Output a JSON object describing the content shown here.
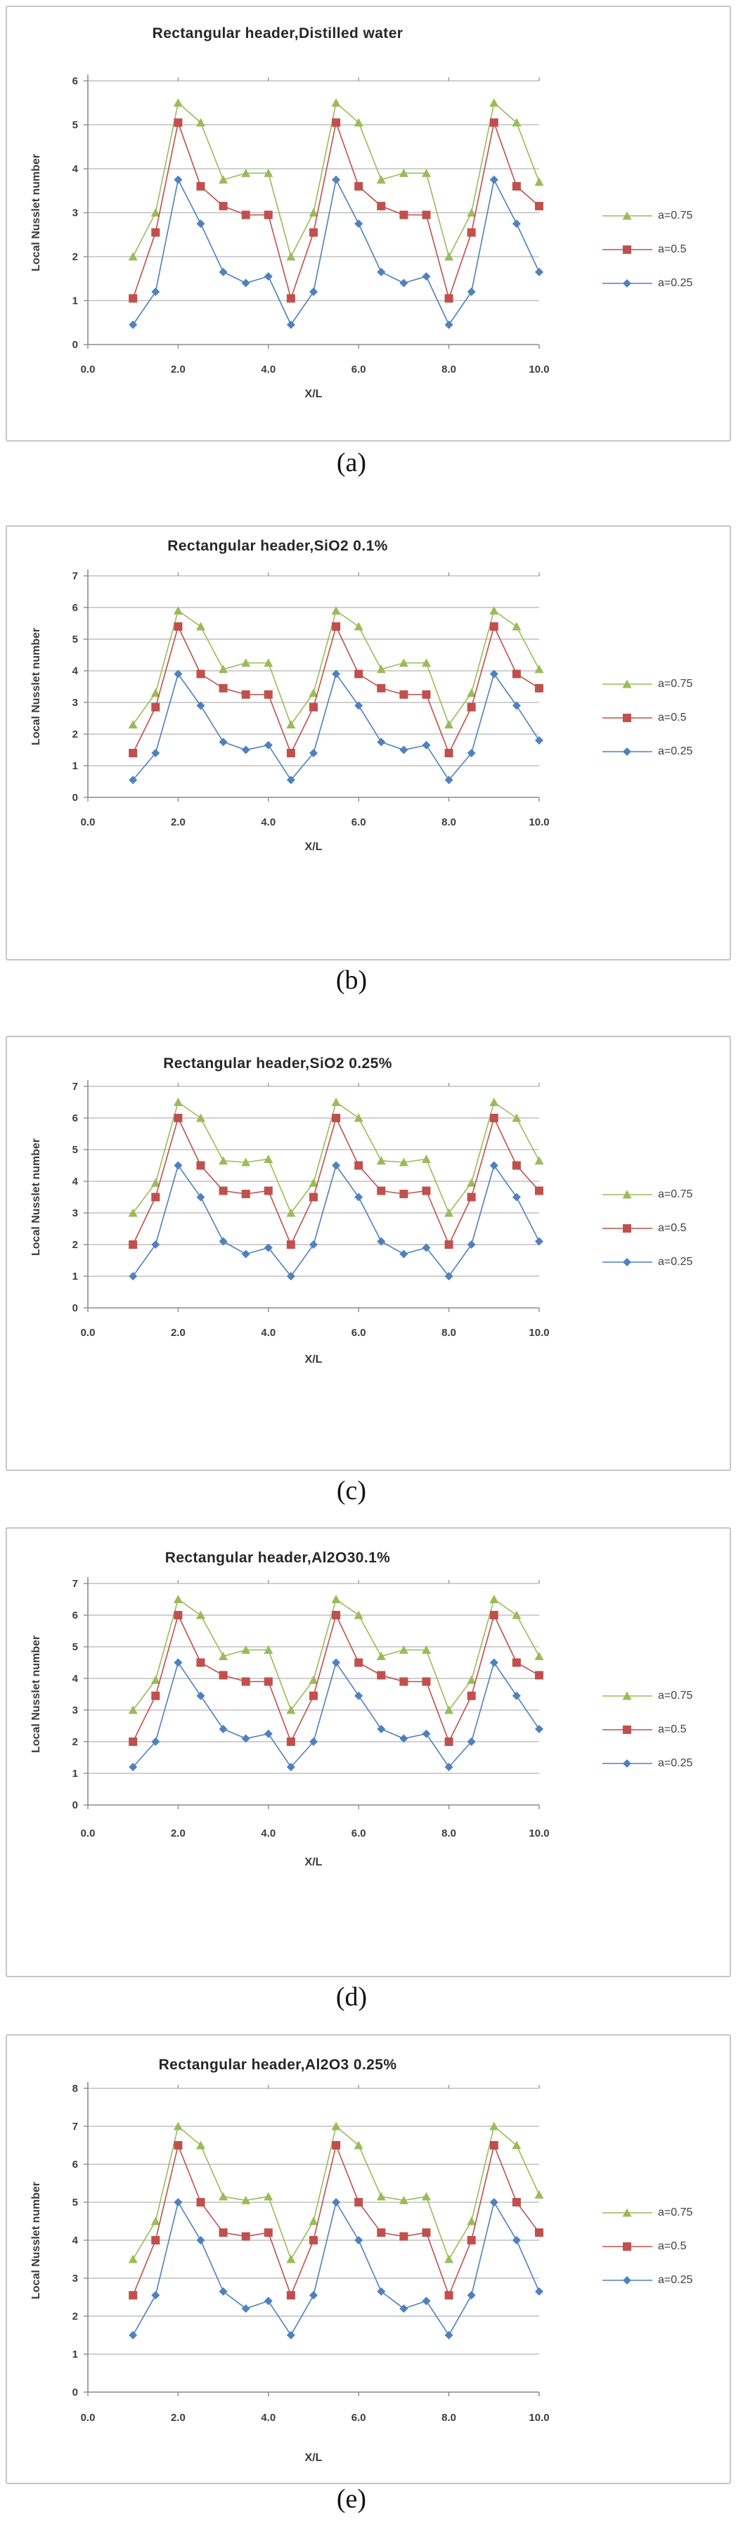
{
  "figure": {
    "description_labels": [
      "(a)",
      "(b)",
      "(c)",
      "(d)",
      "(e)"
    ]
  },
  "chart_data": [
    {
      "type": "line",
      "caption": "(a)",
      "title": "Rectangular header,Distilled water",
      "xlabel": "X/L",
      "ylabel": "Local Nusslet number",
      "xlim": [
        0,
        10
      ],
      "ylim": [
        0,
        6
      ],
      "grid": true,
      "legend_position": "right",
      "xticks": [
        "0.0",
        "2.0",
        "4.0",
        "6.0",
        "8.0",
        "10.0"
      ],
      "x": [
        1,
        1.5,
        2,
        2.5,
        3,
        3.5,
        4,
        4.5,
        5,
        5.5,
        6,
        6.5,
        7,
        7.5,
        8,
        8.5,
        9,
        9.5,
        10
      ],
      "series": [
        {
          "name": "a=0.75",
          "color": "#9bbb59",
          "marker": "triangle",
          "values": [
            2,
            3,
            5.5,
            5.05,
            3.75,
            3.9,
            3.9,
            2,
            3,
            5.5,
            5.05,
            3.75,
            3.9,
            3.9,
            2,
            3,
            5.5,
            5.05,
            3.7
          ]
        },
        {
          "name": "a=0.5",
          "color": "#c0504d",
          "marker": "square",
          "values": [
            1.05,
            2.55,
            5.05,
            3.6,
            3.15,
            2.95,
            2.95,
            1.05,
            2.55,
            5.05,
            3.6,
            3.15,
            2.95,
            2.95,
            1.05,
            2.55,
            5.05,
            3.6,
            3.15
          ]
        },
        {
          "name": "a=0.25",
          "color": "#4f81bd",
          "marker": "diamond",
          "values": [
            0.45,
            1.2,
            3.75,
            2.75,
            1.65,
            1.4,
            1.55,
            0.45,
            1.2,
            3.75,
            2.75,
            1.65,
            1.4,
            1.55,
            0.45,
            1.2,
            3.75,
            2.75,
            1.65
          ]
        }
      ]
    },
    {
      "type": "line",
      "caption": "(b)",
      "title": "Rectangular header,SiO2 0.1%",
      "xlabel": "X/L",
      "ylabel": "Local Nusslet number",
      "xlim": [
        0,
        10
      ],
      "ylim": [
        0,
        7
      ],
      "grid": true,
      "legend_position": "right",
      "xticks": [
        "0.0",
        "2.0",
        "4.0",
        "6.0",
        "8.0",
        "10.0"
      ],
      "x": [
        1,
        1.5,
        2,
        2.5,
        3,
        3.5,
        4,
        4.5,
        5,
        5.5,
        6,
        6.5,
        7,
        7.5,
        8,
        8.5,
        9,
        9.5,
        10
      ],
      "series": [
        {
          "name": "a=0.75",
          "color": "#9bbb59",
          "marker": "triangle",
          "values": [
            2.3,
            3.3,
            5.9,
            5.4,
            4.05,
            4.25,
            4.25,
            2.3,
            3.3,
            5.9,
            5.4,
            4.05,
            4.25,
            4.25,
            2.3,
            3.3,
            5.9,
            5.4,
            4.05
          ]
        },
        {
          "name": "a=0.5",
          "color": "#c0504d",
          "marker": "square",
          "values": [
            1.4,
            2.85,
            5.4,
            3.9,
            3.45,
            3.25,
            3.25,
            1.4,
            2.85,
            5.4,
            3.9,
            3.45,
            3.25,
            3.25,
            1.4,
            2.85,
            5.4,
            3.9,
            3.45
          ]
        },
        {
          "name": "a=0.25",
          "color": "#4f81bd",
          "marker": "diamond",
          "values": [
            0.55,
            1.4,
            3.9,
            2.9,
            1.75,
            1.5,
            1.65,
            0.55,
            1.4,
            3.9,
            2.9,
            1.75,
            1.5,
            1.65,
            0.55,
            1.4,
            3.9,
            2.9,
            1.8
          ]
        }
      ]
    },
    {
      "type": "line",
      "caption": "(c)",
      "title": "Rectangular header,SiO2 0.25%",
      "xlabel": "X/L",
      "ylabel": "Local Nusslet number",
      "xlim": [
        0,
        10
      ],
      "ylim": [
        0,
        7
      ],
      "grid": true,
      "legend_position": "right",
      "xticks": [
        "0.0",
        "2.0",
        "4.0",
        "6.0",
        "8.0",
        "10.0"
      ],
      "x": [
        1,
        1.5,
        2,
        2.5,
        3,
        3.5,
        4,
        4.5,
        5,
        5.5,
        6,
        6.5,
        7,
        7.5,
        8,
        8.5,
        9,
        9.5,
        10
      ],
      "series": [
        {
          "name": "a=0.75",
          "color": "#9bbb59",
          "marker": "triangle",
          "values": [
            3,
            3.95,
            6.5,
            6,
            4.65,
            4.6,
            4.7,
            3,
            3.95,
            6.5,
            6,
            4.65,
            4.6,
            4.7,
            3,
            3.95,
            6.5,
            6,
            4.65
          ]
        },
        {
          "name": "a=0.5",
          "color": "#c0504d",
          "marker": "square",
          "values": [
            2,
            3.5,
            6,
            4.5,
            3.7,
            3.6,
            3.7,
            2,
            3.5,
            6,
            4.5,
            3.7,
            3.6,
            3.7,
            2,
            3.5,
            6,
            4.5,
            3.7
          ]
        },
        {
          "name": "a=0.25",
          "color": "#4f81bd",
          "marker": "diamond",
          "values": [
            1,
            2,
            4.5,
            3.5,
            2.1,
            1.7,
            1.9,
            1,
            2,
            4.5,
            3.5,
            2.1,
            1.7,
            1.9,
            1,
            2,
            4.5,
            3.5,
            2.1
          ]
        }
      ]
    },
    {
      "type": "line",
      "caption": "(d)",
      "title": "Rectangular header,Al2O30.1%",
      "xlabel": "X/L",
      "ylabel": "Local Nusslet number",
      "xlim": [
        0,
        10
      ],
      "ylim": [
        0,
        7
      ],
      "grid": true,
      "legend_position": "right",
      "xticks": [
        "0.0",
        "2.0",
        "4.0",
        "6.0",
        "8.0",
        "10.0"
      ],
      "x": [
        1,
        1.5,
        2,
        2.5,
        3,
        3.5,
        4,
        4.5,
        5,
        5.5,
        6,
        6.5,
        7,
        7.5,
        8,
        8.5,
        9,
        9.5,
        10
      ],
      "series": [
        {
          "name": "a=0.75",
          "color": "#9bbb59",
          "marker": "triangle",
          "values": [
            3,
            3.95,
            6.5,
            6,
            4.7,
            4.9,
            4.9,
            3,
            3.95,
            6.5,
            6,
            4.7,
            4.9,
            4.9,
            3,
            3.95,
            6.5,
            6,
            4.7
          ]
        },
        {
          "name": "a=0.5",
          "color": "#c0504d",
          "marker": "square",
          "values": [
            2,
            3.45,
            6,
            4.5,
            4.1,
            3.9,
            3.9,
            2,
            3.45,
            6,
            4.5,
            4.1,
            3.9,
            3.9,
            2,
            3.45,
            6,
            4.5,
            4.1
          ]
        },
        {
          "name": "a=0.25",
          "color": "#4f81bd",
          "marker": "diamond",
          "values": [
            1.2,
            2,
            4.5,
            3.45,
            2.4,
            2.1,
            2.25,
            1.2,
            2,
            4.5,
            3.45,
            2.4,
            2.1,
            2.25,
            1.2,
            2,
            4.5,
            3.45,
            2.4
          ]
        }
      ]
    },
    {
      "type": "line",
      "caption": "(e)",
      "title": "Rectangular header,Al2O3 0.25%",
      "xlabel": "X/L",
      "ylabel": "Local Nusslet number",
      "xlim": [
        0,
        10
      ],
      "ylim": [
        0,
        8
      ],
      "grid": true,
      "legend_position": "right",
      "xticks": [
        "0.0",
        "2.0",
        "4.0",
        "6.0",
        "8.0",
        "10.0"
      ],
      "x": [
        1,
        1.5,
        2,
        2.5,
        3,
        3.5,
        4,
        4.5,
        5,
        5.5,
        6,
        6.5,
        7,
        7.5,
        8,
        8.5,
        9,
        9.5,
        10
      ],
      "series": [
        {
          "name": "a=0.75",
          "color": "#9bbb59",
          "marker": "triangle",
          "values": [
            3.5,
            4.5,
            7,
            6.5,
            5.15,
            5.05,
            5.15,
            3.5,
            4.5,
            7,
            6.5,
            5.15,
            5.05,
            5.15,
            3.5,
            4.5,
            7,
            6.5,
            5.2
          ]
        },
        {
          "name": "a=0.5",
          "color": "#c0504d",
          "marker": "square",
          "values": [
            2.55,
            4,
            6.5,
            5,
            4.2,
            4.1,
            4.2,
            2.55,
            4,
            6.5,
            5,
            4.2,
            4.1,
            4.2,
            2.55,
            4,
            6.5,
            5,
            4.2
          ]
        },
        {
          "name": "a=0.25",
          "color": "#4f81bd",
          "marker": "diamond",
          "values": [
            1.5,
            2.55,
            5,
            4,
            2.65,
            2.2,
            2.4,
            1.5,
            2.55,
            5,
            4,
            2.65,
            2.2,
            2.4,
            1.5,
            2.55,
            5,
            4,
            2.65
          ]
        }
      ]
    }
  ]
}
